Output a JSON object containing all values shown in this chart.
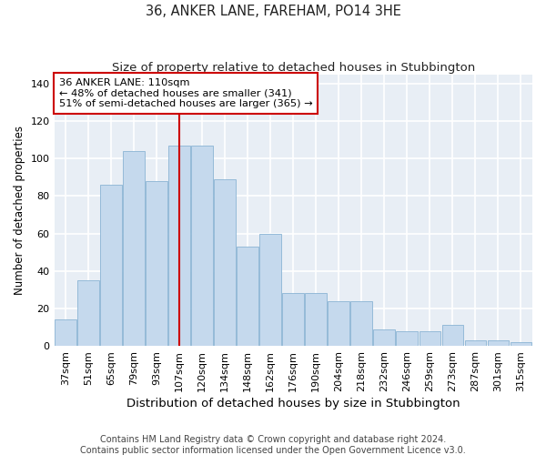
{
  "title": "36, ANKER LANE, FAREHAM, PO14 3HE",
  "subtitle": "Size of property relative to detached houses in Stubbington",
  "xlabel": "Distribution of detached houses by size in Stubbington",
  "ylabel": "Number of detached properties",
  "categories": [
    "37sqm",
    "51sqm",
    "65sqm",
    "79sqm",
    "93sqm",
    "107sqm",
    "120sqm",
    "134sqm",
    "148sqm",
    "162sqm",
    "176sqm",
    "190sqm",
    "204sqm",
    "218sqm",
    "232sqm",
    "246sqm",
    "259sqm",
    "273sqm",
    "287sqm",
    "301sqm",
    "315sqm"
  ],
  "values": [
    14,
    35,
    86,
    104,
    88,
    107,
    107,
    89,
    53,
    60,
    28,
    28,
    24,
    24,
    9,
    8,
    8,
    11,
    3,
    3,
    2
  ],
  "bar_color": "#c5d9ed",
  "bar_edgecolor": "#8ab4d4",
  "vline_x": 5,
  "vline_color": "#cc0000",
  "annotation_line1": "36 ANKER LANE: 110sqm",
  "annotation_line2": "← 48% of detached houses are smaller (341)",
  "annotation_line3": "51% of semi-detached houses are larger (365) →",
  "annotation_box_edgecolor": "#cc0000",
  "annotation_box_facecolor": "#ffffff",
  "ylim": [
    0,
    145
  ],
  "yticks": [
    0,
    20,
    40,
    60,
    80,
    100,
    120,
    140
  ],
  "axes_facecolor": "#e8eef5",
  "grid_color": "#ffffff",
  "footer_line1": "Contains HM Land Registry data © Crown copyright and database right 2024.",
  "footer_line2": "Contains public sector information licensed under the Open Government Licence v3.0.",
  "title_fontsize": 10.5,
  "subtitle_fontsize": 9.5,
  "xlabel_fontsize": 9.5,
  "ylabel_fontsize": 8.5,
  "tick_fontsize": 8,
  "footer_fontsize": 7
}
